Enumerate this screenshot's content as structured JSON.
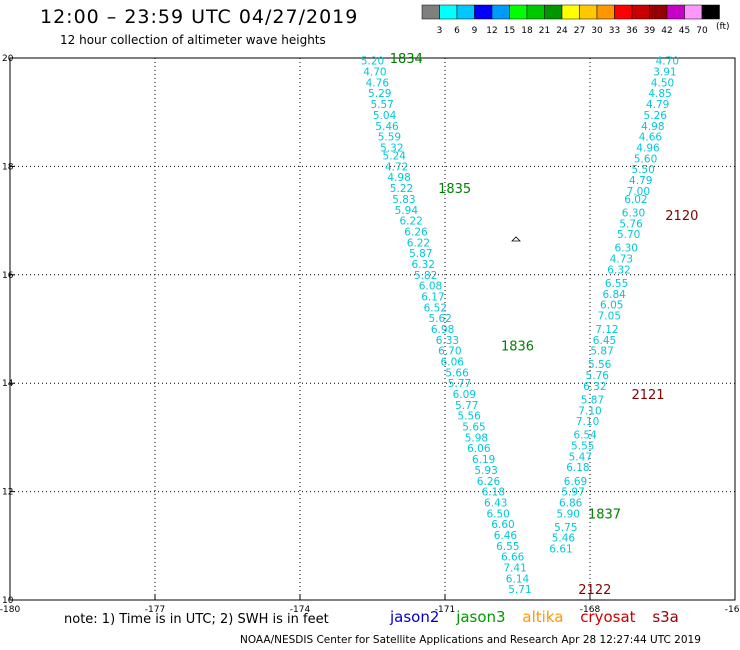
{
  "title": "12:00 – 23:59 UTC 04/27/2019",
  "subtitle": "12 hour collection of altimeter wave heights",
  "note": "note: 1) Time is in UTC; 2) SWH is in feet",
  "credit": "NOAA/NESDIS Center for Satellite Applications and Research   Apr 28 12:27:44 UTC 2019",
  "satellites": [
    {
      "name": "jason2",
      "color": "#0000cc"
    },
    {
      "name": "jason3",
      "color": "#009900"
    },
    {
      "name": "altika",
      "color": "#ff9900"
    },
    {
      "name": "cryosat",
      "color": "#cc0000"
    },
    {
      "name": "s3a",
      "color": "#990000"
    }
  ],
  "color_scale": {
    "unit": "(ft)",
    "labels": [
      "3",
      "6",
      "9",
      "12",
      "15",
      "18",
      "21",
      "24",
      "27",
      "30",
      "33",
      "36",
      "39",
      "42",
      "45",
      "70"
    ],
    "colors": [
      "#7f7f7f",
      "#00ffff",
      "#00c8ff",
      "#0000ff",
      "#009bff",
      "#00ff00",
      "#00c800",
      "#009600",
      "#ffff00",
      "#ffc800",
      "#ff9600",
      "#ff0000",
      "#c80000",
      "#960000",
      "#c800c8",
      "#ff96ff",
      "#000000"
    ]
  },
  "chart_data": {
    "type": "scatter",
    "title": "12:00 – 23:59 UTC 04/27/2019",
    "subtitle": "12 hour collection of altimeter wave heights",
    "xlim": [
      -180,
      -165
    ],
    "ylim": [
      10,
      20
    ],
    "x_ticks": [
      -180,
      -177,
      -174,
      -171,
      -168
    ],
    "y_ticks": [
      10,
      12,
      14,
      16,
      18,
      20
    ],
    "grid": true,
    "track_labels": [
      {
        "text": "1834",
        "lon": -171.8,
        "lat": 20.0,
        "color": "#008000"
      },
      {
        "text": "1835",
        "lon": -170.8,
        "lat": 17.6,
        "color": "#008000"
      },
      {
        "text": "1836",
        "lon": -169.5,
        "lat": 14.7,
        "color": "#008000"
      },
      {
        "text": "1837",
        "lon": -167.7,
        "lat": 11.6,
        "color": "#008000"
      },
      {
        "text": "2120",
        "lon": -166.1,
        "lat": 17.1,
        "color": "#800000"
      },
      {
        "text": "2121",
        "lon": -166.8,
        "lat": 13.8,
        "color": "#800000"
      },
      {
        "text": "2122",
        "lon": -167.9,
        "lat": 10.2,
        "color": "#800000"
      }
    ],
    "series": [
      {
        "name": "1834-1837",
        "color": "#00c8d8",
        "points": [
          {
            "lon": -172.5,
            "lat": 19.95,
            "v": "5.20"
          },
          {
            "lon": -172.45,
            "lat": 19.75,
            "v": "4.70"
          },
          {
            "lon": -172.4,
            "lat": 19.55,
            "v": "4.76"
          },
          {
            "lon": -172.35,
            "lat": 19.35,
            "v": "5.29"
          },
          {
            "lon": -172.3,
            "lat": 19.15,
            "v": "5.57"
          },
          {
            "lon": -172.25,
            "lat": 18.95,
            "v": "5.04"
          },
          {
            "lon": -172.2,
            "lat": 18.75,
            "v": "5.46"
          },
          {
            "lon": -172.15,
            "lat": 18.55,
            "v": "5.59"
          },
          {
            "lon": -172.1,
            "lat": 18.35,
            "v": "5.32"
          },
          {
            "lon": -172.05,
            "lat": 18.2,
            "v": "5.24"
          },
          {
            "lon": -172.0,
            "lat": 18.0,
            "v": "4.72"
          },
          {
            "lon": -171.95,
            "lat": 17.8,
            "v": "4.98"
          },
          {
            "lon": -171.9,
            "lat": 17.6,
            "v": "5.22"
          },
          {
            "lon": -171.85,
            "lat": 17.4,
            "v": "5.83"
          },
          {
            "lon": -171.8,
            "lat": 17.2,
            "v": "5.94"
          },
          {
            "lon": -171.7,
            "lat": 17.0,
            "v": "6.22"
          },
          {
            "lon": -171.6,
            "lat": 16.8,
            "v": "6.26"
          },
          {
            "lon": -171.55,
            "lat": 16.6,
            "v": "6.22"
          },
          {
            "lon": -171.5,
            "lat": 16.4,
            "v": "5.87"
          },
          {
            "lon": -171.45,
            "lat": 16.2,
            "v": "6.32"
          },
          {
            "lon": -171.4,
            "lat": 16.0,
            "v": "5.82"
          },
          {
            "lon": -171.3,
            "lat": 15.8,
            "v": "6.08"
          },
          {
            "lon": -171.25,
            "lat": 15.6,
            "v": "6.17"
          },
          {
            "lon": -171.2,
            "lat": 15.4,
            "v": "6.52"
          },
          {
            "lon": -171.1,
            "lat": 15.2,
            "v": "5.62"
          },
          {
            "lon": -171.05,
            "lat": 15.0,
            "v": "6.98"
          },
          {
            "lon": -170.95,
            "lat": 14.8,
            "v": "6.33"
          },
          {
            "lon": -170.9,
            "lat": 14.6,
            "v": "6.70"
          },
          {
            "lon": -170.85,
            "lat": 14.4,
            "v": "6.06"
          },
          {
            "lon": -170.75,
            "lat": 14.2,
            "v": "5.66"
          },
          {
            "lon": -170.7,
            "lat": 14.0,
            "v": "5.77"
          },
          {
            "lon": -170.6,
            "lat": 13.8,
            "v": "6.09"
          },
          {
            "lon": -170.55,
            "lat": 13.6,
            "v": "5.77"
          },
          {
            "lon": -170.5,
            "lat": 13.4,
            "v": "5.56"
          },
          {
            "lon": -170.4,
            "lat": 13.2,
            "v": "5.65"
          },
          {
            "lon": -170.35,
            "lat": 13.0,
            "v": "5.98"
          },
          {
            "lon": -170.3,
            "lat": 12.8,
            "v": "6.06"
          },
          {
            "lon": -170.2,
            "lat": 12.6,
            "v": "6.19"
          },
          {
            "lon": -170.15,
            "lat": 12.4,
            "v": "5.93"
          },
          {
            "lon": -170.1,
            "lat": 12.2,
            "v": "6.26"
          },
          {
            "lon": -170.0,
            "lat": 12.0,
            "v": "6.18"
          },
          {
            "lon": -169.95,
            "lat": 11.8,
            "v": "6.43"
          },
          {
            "lon": -169.9,
            "lat": 11.6,
            "v": "6.50"
          },
          {
            "lon": -169.8,
            "lat": 11.4,
            "v": "6.60"
          },
          {
            "lon": -169.75,
            "lat": 11.2,
            "v": "6.46"
          },
          {
            "lon": -169.7,
            "lat": 11.0,
            "v": "6.55"
          },
          {
            "lon": -169.6,
            "lat": 10.8,
            "v": "6.66"
          },
          {
            "lon": -169.55,
            "lat": 10.6,
            "v": "7.41"
          },
          {
            "lon": -169.5,
            "lat": 10.4,
            "v": "6.14"
          },
          {
            "lon": -169.45,
            "lat": 10.2,
            "v": "5.71"
          }
        ]
      },
      {
        "name": "2120-2122",
        "color": "#00c8d8",
        "points": [
          {
            "lon": -166.4,
            "lat": 19.95,
            "v": "4.70"
          },
          {
            "lon": -166.45,
            "lat": 19.75,
            "v": "3.91"
          },
          {
            "lon": -166.5,
            "lat": 19.55,
            "v": "4.50"
          },
          {
            "lon": -166.55,
            "lat": 19.35,
            "v": "4.85"
          },
          {
            "lon": -166.6,
            "lat": 19.15,
            "v": "4.79"
          },
          {
            "lon": -166.65,
            "lat": 18.95,
            "v": "5.26"
          },
          {
            "lon": -166.7,
            "lat": 18.75,
            "v": "4.98"
          },
          {
            "lon": -166.75,
            "lat": 18.55,
            "v": "4.66"
          },
          {
            "lon": -166.8,
            "lat": 18.35,
            "v": "4.96"
          },
          {
            "lon": -166.85,
            "lat": 18.15,
            "v": "5.60"
          },
          {
            "lon": -166.9,
            "lat": 17.95,
            "v": "5.50"
          },
          {
            "lon": -166.95,
            "lat": 17.75,
            "v": "4.79"
          },
          {
            "lon": -167.0,
            "lat": 17.55,
            "v": "7.00"
          },
          {
            "lon": -167.05,
            "lat": 17.4,
            "v": "6.02"
          },
          {
            "lon": -167.1,
            "lat": 17.15,
            "v": "6.30"
          },
          {
            "lon": -167.15,
            "lat": 16.95,
            "v": "5.76"
          },
          {
            "lon": -167.2,
            "lat": 16.75,
            "v": "5.70"
          },
          {
            "lon": -167.25,
            "lat": 16.5,
            "v": "6.30"
          },
          {
            "lon": -167.35,
            "lat": 16.3,
            "v": "4.73"
          },
          {
            "lon": -167.4,
            "lat": 16.1,
            "v": "6.32"
          },
          {
            "lon": -167.45,
            "lat": 15.85,
            "v": "6.55"
          },
          {
            "lon": -167.5,
            "lat": 15.65,
            "v": "6.84"
          },
          {
            "lon": -167.55,
            "lat": 15.45,
            "v": "6.05"
          },
          {
            "lon": -167.6,
            "lat": 15.25,
            "v": "7.05"
          },
          {
            "lon": -167.65,
            "lat": 15.0,
            "v": "7.12"
          },
          {
            "lon": -167.7,
            "lat": 14.8,
            "v": "6.45"
          },
          {
            "lon": -167.75,
            "lat": 14.6,
            "v": "5.87"
          },
          {
            "lon": -167.8,
            "lat": 14.35,
            "v": "5.56"
          },
          {
            "lon": -167.85,
            "lat": 14.15,
            "v": "5.76"
          },
          {
            "lon": -167.9,
            "lat": 13.95,
            "v": "6.32"
          },
          {
            "lon": -167.95,
            "lat": 13.7,
            "v": "5.87"
          },
          {
            "lon": -168.0,
            "lat": 13.5,
            "v": "7.10"
          },
          {
            "lon": -168.05,
            "lat": 13.3,
            "v": "7.10"
          },
          {
            "lon": -168.1,
            "lat": 13.05,
            "v": "6.54"
          },
          {
            "lon": -168.15,
            "lat": 12.85,
            "v": "5.55"
          },
          {
            "lon": -168.2,
            "lat": 12.65,
            "v": "5.47"
          },
          {
            "lon": -168.25,
            "lat": 12.45,
            "v": "6.18"
          },
          {
            "lon": -168.3,
            "lat": 12.2,
            "v": "6.69"
          },
          {
            "lon": -168.35,
            "lat": 12.0,
            "v": "5.97"
          },
          {
            "lon": -168.4,
            "lat": 11.8,
            "v": "6.86"
          },
          {
            "lon": -168.45,
            "lat": 11.6,
            "v": "5.90"
          },
          {
            "lon": -168.5,
            "lat": 11.35,
            "v": "5.75"
          },
          {
            "lon": -168.55,
            "lat": 11.15,
            "v": "5.46"
          },
          {
            "lon": -168.6,
            "lat": 10.95,
            "v": "6.61"
          }
        ]
      }
    ]
  }
}
